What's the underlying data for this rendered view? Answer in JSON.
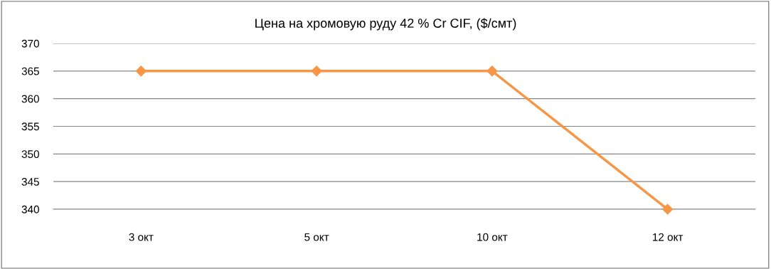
{
  "chart_data": {
    "type": "line",
    "title": "Цена на хромовую руду 42 % Cr CIF, ($/смт)",
    "categories": [
      "3 окт",
      "5 окт",
      "10 окт",
      "12 окт"
    ],
    "series": [
      {
        "color": "#f79646",
        "values": [
          365,
          365,
          365,
          340
        ]
      }
    ],
    "ylim": [
      340,
      370
    ],
    "yticks": [
      340,
      345,
      350,
      355,
      360,
      365,
      370
    ],
    "grid": "y",
    "legend": false,
    "marker": "diamond",
    "line_style": "solid"
  }
}
